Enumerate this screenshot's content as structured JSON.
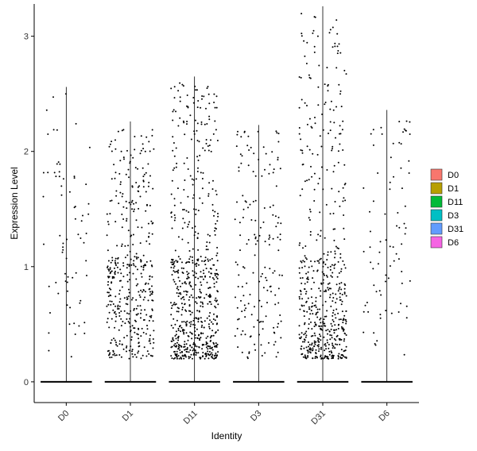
{
  "chart_data": {
    "type": "scatter",
    "subtype": "violin-jitter",
    "xlabel": "Identity",
    "ylabel": "Expression Level",
    "categories": [
      "D0",
      "D1",
      "D11",
      "D3",
      "D31",
      "D6"
    ],
    "ylim": [
      -0.18,
      3.28
    ],
    "yticks": [
      0,
      1,
      2,
      3
    ],
    "grid": false,
    "legend": {
      "position": "right",
      "entries": [
        {
          "label": "D0",
          "color": "#F8766D"
        },
        {
          "label": "D1",
          "color": "#B79F00"
        },
        {
          "label": "D11",
          "color": "#00BA38"
        },
        {
          "label": "D3",
          "color": "#00BFC4"
        },
        {
          "label": "D31",
          "color": "#619CFF"
        },
        {
          "label": "D6",
          "color": "#F564E3"
        }
      ]
    },
    "series": [
      {
        "category": "D0",
        "max": 2.56,
        "n_points": 70,
        "density": "sparse-uniform"
      },
      {
        "category": "D1",
        "max": 2.26,
        "n_points": 420,
        "density": "moderate"
      },
      {
        "category": "D11",
        "max": 2.65,
        "n_points": 650,
        "density": "dense-low"
      },
      {
        "category": "D3",
        "max": 2.23,
        "n_points": 170,
        "density": "moderate-sparse"
      },
      {
        "category": "D31",
        "max": 3.26,
        "n_points": 560,
        "density": "dense-low-wide"
      },
      {
        "category": "D6",
        "max": 2.36,
        "n_points": 80,
        "density": "sparse-uniform"
      }
    ],
    "zero_baseline": true,
    "point_color": "#000000"
  }
}
